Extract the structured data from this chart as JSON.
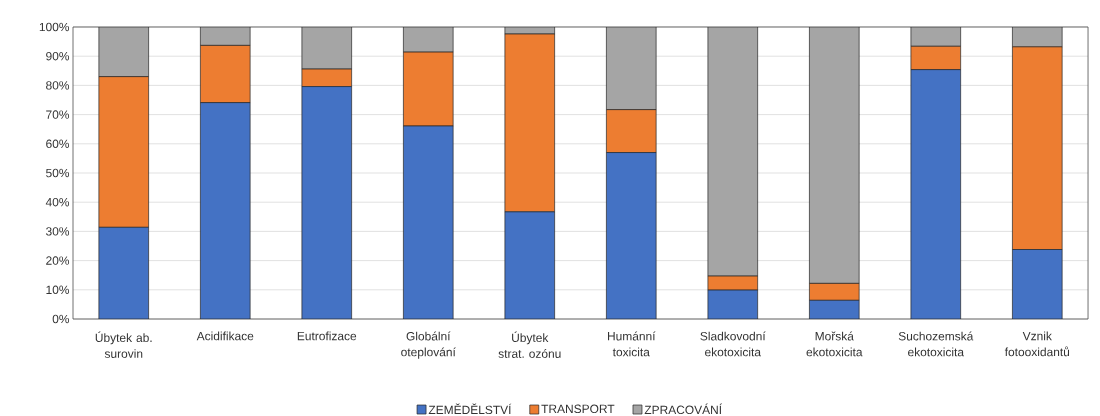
{
  "chart_data": {
    "type": "bar",
    "stacked": true,
    "categories": [
      "Úbytek ab. surovin",
      "Acidifikace",
      "Eutrofizace",
      "Globální oteplování",
      "Úbytek strat. ozónu",
      "Humánní toxicita",
      "Sladkovodní ekotoxicita",
      "Mořská ekotoxicita",
      "Suchozemská ekotoxicita",
      "Vznik fotooxidantů"
    ],
    "series": [
      {
        "name": "ZEMĚDĚLSTVÍ",
        "color": "#4472c4",
        "values": [
          31.4,
          74.1,
          79.6,
          66.1,
          36.7,
          57.0,
          9.9,
          6.4,
          85.4,
          23.8
        ]
      },
      {
        "name": "TRANSPORT",
        "color": "#ed7d31",
        "values": [
          51.6,
          19.6,
          6.0,
          25.3,
          60.9,
          14.7,
          4.8,
          5.8,
          8.0,
          69.4
        ]
      },
      {
        "name": "ZPRACOVÁNÍ",
        "color": "#a5a5a5",
        "values": [
          17.0,
          6.3,
          14.4,
          8.6,
          2.4,
          28.3,
          85.3,
          87.8,
          6.6,
          6.8
        ]
      }
    ],
    "ylim": [
      0,
      100
    ],
    "yticks": [
      {
        "value": 0,
        "label": "0%"
      },
      {
        "value": 10,
        "label": "10%"
      },
      {
        "value": 20,
        "label": "20%"
      },
      {
        "value": 30,
        "label": "30%"
      },
      {
        "value": 40,
        "label": "40%"
      },
      {
        "value": 50,
        "label": "50%"
      },
      {
        "value": 60,
        "label": "60%"
      },
      {
        "value": 70,
        "label": "70%"
      },
      {
        "value": 80,
        "label": "80%"
      },
      {
        "value": 90,
        "label": "90%"
      },
      {
        "value": 100,
        "label": "100%"
      }
    ],
    "grid": "y",
    "legend": "bottom"
  }
}
